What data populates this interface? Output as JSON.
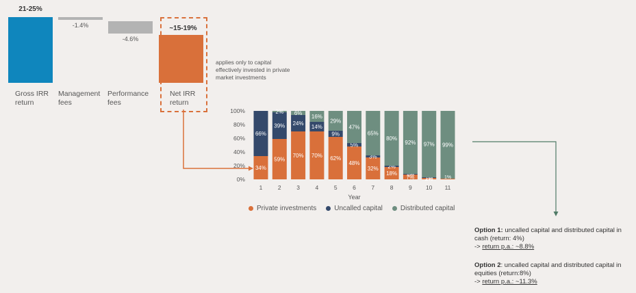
{
  "colors": {
    "gross": "#0f86bd",
    "fees": "#b3b3b3",
    "net": "#d9703a",
    "private": "#d9703a",
    "uncalled": "#34496b",
    "distributed": "#6e8e80",
    "connector": "#d9703a",
    "arrow": "#4f7a66"
  },
  "waterfall": {
    "gross_irr": {
      "value": "21-25%",
      "label_line1": "Gross IRR",
      "label_line2": "return"
    },
    "management_fees": {
      "value": "-1.4%",
      "label_line1": "Management",
      "label_line2": "fees"
    },
    "performance_fees": {
      "value": "-4.6%",
      "label_line1": "Performance",
      "label_line2": "fees"
    },
    "net_irr": {
      "value": "~15-19%",
      "label_line1": "Net IRR",
      "label_line2": "return"
    },
    "note": "applies only to capital effectively invested in private market investments"
  },
  "chart_data": {
    "type": "bar",
    "stacked": true,
    "categories": [
      "1",
      "2",
      "3",
      "4",
      "5",
      "6",
      "7",
      "8",
      "9",
      "10",
      "11"
    ],
    "xlabel": "Year",
    "ylabel": "",
    "ylim": [
      0,
      100
    ],
    "yticks": [
      "0%",
      "20%",
      "40%",
      "60%",
      "80%",
      "100%"
    ],
    "series": [
      {
        "name": "Private investments",
        "key": "private",
        "values": [
          34,
          59,
          70,
          70,
          62,
          48,
          32,
          18,
          7,
          2,
          1
        ],
        "labels": [
          "34%",
          "59%",
          "70%",
          "70%",
          "62%",
          "48%",
          "32%",
          "18%",
          "7%",
          "2%",
          ""
        ]
      },
      {
        "name": "Uncalled capital",
        "key": "uncalled",
        "values": [
          66,
          39,
          24,
          14,
          9,
          5,
          3,
          2,
          1,
          1,
          0
        ],
        "labels": [
          "66%",
          "39%",
          "24%",
          "14%",
          "9%",
          "5%",
          "3%",
          "2%",
          "1%",
          "1%",
          ""
        ]
      },
      {
        "name": "Distributed capital",
        "key": "distributed",
        "values": [
          0,
          2,
          6,
          16,
          29,
          47,
          65,
          80,
          92,
          97,
          99
        ],
        "labels": [
          "",
          "2%",
          "6%",
          "16%",
          "29%",
          "47%",
          "65%",
          "80%",
          "92%",
          "97%",
          "99%"
        ]
      }
    ],
    "extra_label": "1%",
    "legend": [
      "Private investments",
      "Uncalled capital",
      "Distributed capital"
    ]
  },
  "options": {
    "option1_title": "Option 1:",
    "option1_text": " uncalled capital and distributed capital in cash (return: 4%)",
    "option1_arrow": "-> ",
    "option1_return": "return p.a.: ~8.8%",
    "option2_title": "Option 2",
    "option2_text": ": uncalled capital and distributed capital in equities (return:8%)",
    "option2_arrow": "-> ",
    "option2_return": "return p.a.: ~11.3%"
  }
}
